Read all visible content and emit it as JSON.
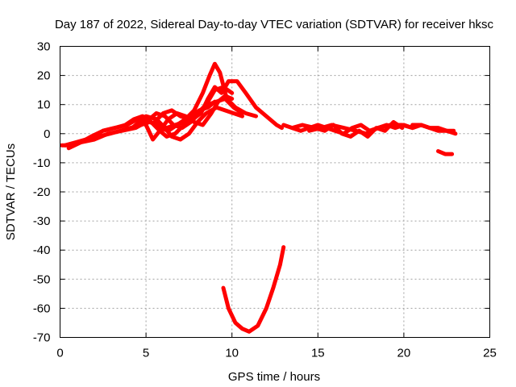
{
  "chart_data": {
    "type": "line",
    "title": "Day 187 of 2022, Sidereal Day-to-day VTEC variation (SDTVAR) for receiver hksc",
    "xlabel": "GPS time / hours",
    "ylabel": "SDTVAR / TECUs",
    "xlim": [
      0,
      25
    ],
    "ylim": [
      -70,
      30
    ],
    "xticks": [
      0,
      5,
      10,
      15,
      20,
      25
    ],
    "yticks": [
      30,
      20,
      10,
      0,
      -10,
      -20,
      -30,
      -40,
      -50,
      -60,
      -70
    ],
    "grid": true,
    "color": "#ff0000",
    "series": [
      {
        "name": "track-1",
        "x": [
          0.1,
          0.6,
          1.2,
          1.8,
          2.5,
          3.2,
          3.8,
          4.3,
          4.8,
          5.3,
          5.8,
          6.3,
          6.8,
          7.3,
          7.8,
          8.3,
          8.7,
          9.0,
          9.3,
          9.7,
          10.2,
          10.8,
          11.4
        ],
        "y": [
          -4,
          -4,
          -3,
          -1,
          1,
          2,
          3,
          5,
          6,
          4,
          2,
          1,
          3,
          5,
          8,
          14,
          20,
          24,
          21,
          12,
          9,
          7,
          6
        ]
      },
      {
        "name": "track-2",
        "x": [
          0.3,
          0.9,
          1.5,
          2.2,
          2.9,
          3.5,
          4.1,
          4.7,
          5.2,
          5.7,
          6.2,
          6.7,
          7.2,
          7.7,
          8.2,
          8.6,
          9.0,
          9.4,
          9.8,
          10.3,
          10.8,
          11.4,
          12.0,
          12.6,
          12.9
        ],
        "y": [
          -4,
          -3,
          -2,
          -1,
          0,
          1,
          2,
          3,
          4,
          3,
          2,
          3,
          4,
          5,
          7,
          12,
          16,
          14,
          18,
          18,
          14,
          9,
          6,
          3,
          2
        ]
      },
      {
        "name": "track-3",
        "x": [
          0.5,
          1.2,
          2.0,
          2.8,
          3.6,
          4.4,
          5.0,
          5.6,
          6.1,
          6.6,
          7.1,
          7.6,
          8.1,
          8.6,
          9.1,
          9.6,
          10.1,
          10.6
        ],
        "y": [
          -5,
          -3,
          -2,
          0,
          1,
          2,
          4,
          7,
          6,
          3,
          2,
          4,
          7,
          10,
          11,
          12,
          9,
          7
        ]
      },
      {
        "name": "track-4",
        "x": [
          2.5,
          3.2,
          3.9,
          4.5,
          5.0,
          5.4,
          5.8,
          6.3,
          6.8,
          7.3,
          7.8,
          8.3,
          8.8,
          9.2,
          9.6,
          10.0
        ],
        "y": [
          1,
          2,
          3,
          5,
          3,
          -2,
          1,
          5,
          7,
          6,
          4,
          3,
          7,
          11,
          13,
          12
        ]
      },
      {
        "name": "track-5",
        "x": [
          4.2,
          4.8,
          5.3,
          5.8,
          6.2,
          6.7,
          7.2,
          7.6,
          8.1,
          8.6,
          9.0
        ],
        "y": [
          2,
          5,
          4,
          1,
          -1,
          0,
          3,
          6,
          8,
          9,
          11
        ]
      },
      {
        "name": "track-6",
        "x": [
          4.5,
          5.0,
          5.6,
          6.1,
          6.5,
          7.0,
          7.5,
          8.0,
          8.5,
          9.1,
          9.6,
          10.1,
          10.6
        ],
        "y": [
          3,
          6,
          5,
          2,
          -1,
          -2,
          0,
          4,
          7,
          9,
          8,
          7,
          6
        ]
      },
      {
        "name": "track-7",
        "x": [
          5.5,
          6.0,
          6.5,
          7.0,
          7.5,
          8.0,
          8.5,
          9.0,
          9.5,
          10.0
        ],
        "y": [
          4,
          7,
          8,
          6,
          5,
          7,
          10,
          15,
          16,
          14
        ]
      },
      {
        "name": "track-8",
        "x": [
          13.0,
          13.5,
          14.0,
          14.5,
          15.0,
          15.5,
          16.0,
          16.5,
          17.0,
          17.5,
          18.0,
          18.5,
          19.0,
          19.5,
          20.0,
          20.5,
          21.0
        ],
        "y": [
          3,
          2,
          1,
          2,
          3,
          2,
          1,
          0,
          2,
          3,
          1,
          2,
          3,
          2,
          3,
          2,
          3
        ]
      },
      {
        "name": "track-9",
        "x": [
          13.5,
          14.1,
          14.8,
          15.4,
          15.9,
          16.4,
          16.9,
          17.4,
          17.9,
          18.4,
          18.9,
          19.4,
          19.9
        ],
        "y": [
          2,
          3,
          2,
          1,
          3,
          0,
          -1,
          1,
          -1,
          2,
          1,
          4,
          2
        ]
      },
      {
        "name": "track-10",
        "x": [
          14.5,
          15.2,
          15.8,
          16.5,
          17.2,
          17.8,
          18.5,
          19.2,
          19.9,
          20.5,
          21.0,
          21.5,
          22.0,
          22.5,
          23.0
        ],
        "y": [
          1,
          2,
          3,
          2,
          1,
          0,
          2,
          3,
          3,
          2,
          3,
          2,
          1,
          1,
          0
        ]
      },
      {
        "name": "track-11",
        "x": [
          20.5,
          21.0,
          21.5,
          22.0,
          22.5,
          22.9
        ],
        "y": [
          3,
          3,
          2,
          2,
          1,
          1
        ]
      },
      {
        "name": "track-12",
        "x": [
          22.0,
          22.4,
          22.8
        ],
        "y": [
          -6,
          -7,
          -7
        ]
      },
      {
        "name": "track-13",
        "x": [
          9.5,
          9.8,
          10.2,
          10.6,
          11.0,
          11.5,
          12.0,
          12.4,
          12.8,
          13.0
        ],
        "y": [
          -53,
          -60,
          -65,
          -67,
          -68,
          -66,
          -60,
          -53,
          -45,
          -39
        ]
      }
    ]
  }
}
